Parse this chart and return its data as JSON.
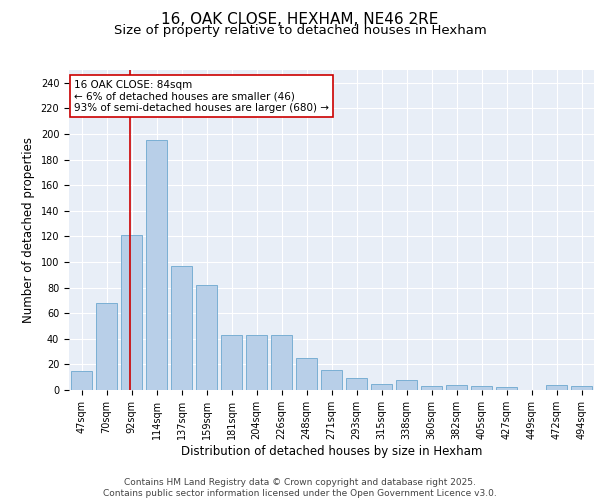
{
  "title1": "16, OAK CLOSE, HEXHAM, NE46 2RE",
  "title2": "Size of property relative to detached houses in Hexham",
  "xlabel": "Distribution of detached houses by size in Hexham",
  "ylabel": "Number of detached properties",
  "categories": [
    "47sqm",
    "70sqm",
    "92sqm",
    "114sqm",
    "137sqm",
    "159sqm",
    "181sqm",
    "204sqm",
    "226sqm",
    "248sqm",
    "271sqm",
    "293sqm",
    "315sqm",
    "338sqm",
    "360sqm",
    "382sqm",
    "405sqm",
    "427sqm",
    "449sqm",
    "472sqm",
    "494sqm"
  ],
  "values": [
    15,
    68,
    121,
    195,
    97,
    82,
    43,
    43,
    43,
    25,
    16,
    9,
    5,
    8,
    3,
    4,
    3,
    2,
    0,
    4,
    3
  ],
  "bar_color": "#b8cfe8",
  "bar_edge_color": "#7aafd4",
  "vline_x": 1.92,
  "vline_color": "#cc0000",
  "annotation_text": "16 OAK CLOSE: 84sqm\n← 6% of detached houses are smaller (46)\n93% of semi-detached houses are larger (680) →",
  "annotation_box_color": "#ffffff",
  "annotation_box_edge_color": "#cc0000",
  "ylim": [
    0,
    250
  ],
  "yticks": [
    0,
    20,
    40,
    60,
    80,
    100,
    120,
    140,
    160,
    180,
    200,
    220,
    240
  ],
  "background_color": "#e8eef7",
  "footer_text": "Contains HM Land Registry data © Crown copyright and database right 2025.\nContains public sector information licensed under the Open Government Licence v3.0.",
  "title1_fontsize": 11,
  "title2_fontsize": 9.5,
  "xlabel_fontsize": 8.5,
  "ylabel_fontsize": 8.5,
  "annotation_fontsize": 7.5,
  "footer_fontsize": 6.5,
  "tick_fontsize": 7,
  "ytick_fontsize": 7
}
